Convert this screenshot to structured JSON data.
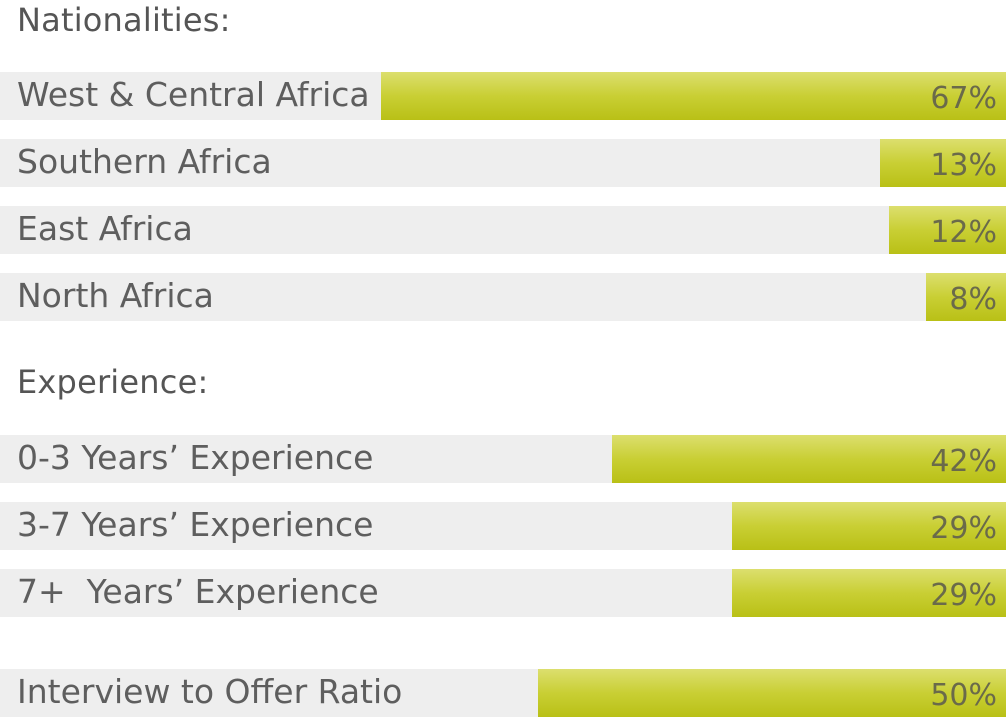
{
  "chart_data": {
    "type": "bar",
    "orientation": "horizontal",
    "xlim": [
      0,
      100
    ],
    "groups": [
      {
        "title": "Nationalities:",
        "categories": [
          "West & Central Africa",
          "Southern Africa",
          "East Africa",
          "North Africa"
        ],
        "values": [
          67,
          13,
          12,
          8
        ],
        "value_labels": [
          "67%",
          "13%",
          "12%",
          "8%"
        ]
      },
      {
        "title": "Experience:",
        "categories": [
          "0-3 Years’ Experience",
          "3-7 Years’ Experience",
          "7+  Years’ Experience"
        ],
        "values": [
          42,
          29,
          29
        ],
        "value_labels": [
          "42%",
          "29%",
          "29%"
        ]
      },
      {
        "title": "",
        "categories": [
          "Interview to Offer Ratio"
        ],
        "values": [
          50
        ],
        "value_labels": [
          "50%"
        ]
      }
    ],
    "colors": {
      "track": "#eeeeee",
      "bar_top": "#dcdf6e",
      "bar_bottom": "#b9c016",
      "text": "#5e5e5e"
    }
  }
}
